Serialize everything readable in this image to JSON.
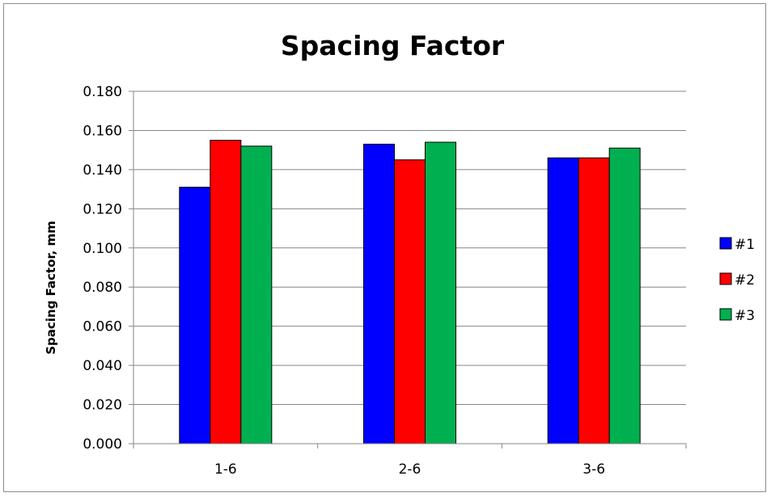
{
  "chart_data": {
    "type": "bar",
    "title": "Spacing Factor",
    "xlabel": "",
    "ylabel": "Spacing Factor, mm",
    "categories": [
      "1-6",
      "2-6",
      "3-6"
    ],
    "series": [
      {
        "name": "#1",
        "color": "#0000ff",
        "values": [
          0.131,
          0.153,
          0.146
        ]
      },
      {
        "name": "#2",
        "color": "#ff0000",
        "values": [
          0.155,
          0.145,
          0.146
        ]
      },
      {
        "name": "#3",
        "color": "#00b050",
        "values": [
          0.152,
          0.154,
          0.151
        ]
      }
    ],
    "ylim": [
      0,
      0.18
    ],
    "yticks": [
      "0.000",
      "0.020",
      "0.040",
      "0.060",
      "0.080",
      "0.100",
      "0.120",
      "0.140",
      "0.160",
      "0.180"
    ],
    "grid": true,
    "legend": "right"
  }
}
